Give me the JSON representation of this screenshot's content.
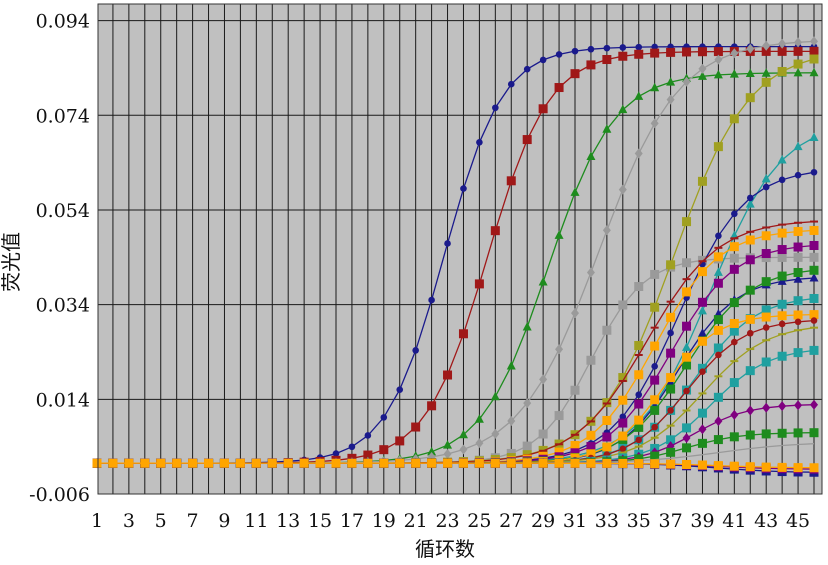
{
  "chart_data": {
    "type": "line",
    "title": "",
    "xlabel": "循环数",
    "ylabel": "荧光值",
    "xlim": [
      1,
      46
    ],
    "ylim": [
      -0.006,
      0.0975
    ],
    "x_tick_labels": [
      "1",
      "3",
      "5",
      "7",
      "9",
      "11",
      "13",
      "15",
      "17",
      "19",
      "21",
      "23",
      "25",
      "27",
      "29",
      "31",
      "33",
      "35",
      "37",
      "39",
      "41",
      "43",
      "45"
    ],
    "y_tick_labels": [
      "-0.006",
      "0.014",
      "0.034",
      "0.054",
      "0.074",
      "0.094"
    ],
    "x_ticks": [
      1,
      3,
      5,
      7,
      9,
      11,
      13,
      15,
      17,
      19,
      21,
      23,
      25,
      27,
      29,
      31,
      33,
      35,
      37,
      39,
      41,
      43,
      45
    ],
    "y_ticks": [
      -0.006,
      0.014,
      0.034,
      0.054,
      0.074,
      0.094
    ],
    "grid": true,
    "background": "#c0c0c0",
    "legend": "none",
    "series": [
      {
        "color": "#1a1a8c",
        "marker": "circle",
        "baseline": 0.0005,
        "plateau": 0.0885,
        "midpoint": 22.8,
        "slope": 0.55
      },
      {
        "color": "#a01818",
        "marker": "square",
        "baseline": 0.0005,
        "plateau": 0.0875,
        "midpoint": 25.5,
        "slope": 0.52
      },
      {
        "color": "#1e8c1e",
        "marker": "triangle",
        "baseline": 0.0005,
        "plateau": 0.083,
        "midpoint": 29.3,
        "slope": 0.48
      },
      {
        "color": "#9a9a9a",
        "marker": "diamond",
        "baseline": 0.0005,
        "plateau": 0.09,
        "midpoint": 32.5,
        "slope": 0.4
      },
      {
        "color": "#9a9a9a",
        "marker": "square",
        "baseline": 0.0005,
        "plateau": 0.044,
        "midpoint": 32.0,
        "slope": 0.6
      },
      {
        "color": "#a0a020",
        "marker": "square",
        "baseline": 0.0005,
        "plateau": 0.088,
        "midpoint": 37.2,
        "slope": 0.42
      },
      {
        "color": "#20a0a0",
        "marker": "triangle",
        "baseline": 0.0005,
        "plateau": 0.073,
        "midpoint": 39.5,
        "slope": 0.45
      },
      {
        "color": "#1a1a8c",
        "marker": "circle",
        "baseline": 0.0005,
        "plateau": 0.063,
        "midpoint": 37.5,
        "slope": 0.48
      },
      {
        "color": "#a01818",
        "marker": "dash",
        "baseline": 0.0005,
        "plateau": 0.052,
        "midpoint": 35.5,
        "slope": 0.45
      },
      {
        "color": "#ffa500",
        "marker": "square",
        "baseline": 0.0005,
        "plateau": 0.05,
        "midpoint": 36.0,
        "slope": 0.5
      },
      {
        "color": "#800080",
        "marker": "square",
        "baseline": 0.0005,
        "plateau": 0.047,
        "midpoint": 37.0,
        "slope": 0.5
      },
      {
        "color": "#1a1a8c",
        "marker": "triangle",
        "baseline": 0.0005,
        "plateau": 0.04,
        "midpoint": 37.5,
        "slope": 0.55
      },
      {
        "color": "#1e8c1e",
        "marker": "square",
        "baseline": 0.0005,
        "plateau": 0.042,
        "midpoint": 38.0,
        "slope": 0.5
      },
      {
        "color": "#20a0a0",
        "marker": "square",
        "baseline": 0.0005,
        "plateau": 0.036,
        "midpoint": 38.5,
        "slope": 0.52
      },
      {
        "color": "#ffa500",
        "marker": "square",
        "baseline": 0.0005,
        "plateau": 0.032,
        "midpoint": 36.5,
        "slope": 0.6
      },
      {
        "color": "#a01818",
        "marker": "circle",
        "baseline": 0.0005,
        "plateau": 0.031,
        "midpoint": 38.0,
        "slope": 0.55
      },
      {
        "color": "#a0a020",
        "marker": "dash",
        "baseline": 0.0005,
        "plateau": 0.03,
        "midpoint": 39.0,
        "slope": 0.5
      },
      {
        "color": "#20a0a0",
        "marker": "square",
        "baseline": 0.0005,
        "plateau": 0.025,
        "midpoint": 39.5,
        "slope": 0.55
      },
      {
        "color": "#800080",
        "marker": "diamond",
        "baseline": 0.0005,
        "plateau": 0.013,
        "midpoint": 38.5,
        "slope": 0.6
      },
      {
        "color": "#1e8c1e",
        "marker": "square",
        "baseline": 0.0005,
        "plateau": 0.007,
        "midpoint": 38.0,
        "slope": 0.6
      },
      {
        "color": "#9a9a9a",
        "marker": "none",
        "baseline": 0.0005,
        "plateau": 0.005,
        "midpoint": 40.0,
        "slope": 0.4
      },
      {
        "color": "#1a1a8c",
        "marker": "square",
        "baseline": 0.0005,
        "plateau": -0.0015,
        "midpoint": 40.0,
        "slope": 0.5
      },
      {
        "color": "#800080",
        "marker": "square",
        "baseline": 0.0005,
        "plateau": -0.0008,
        "midpoint": 40.0,
        "slope": 0.5
      },
      {
        "color": "#ffa500",
        "marker": "square",
        "baseline": 0.0005,
        "plateau": -0.0005,
        "midpoint": 40.0,
        "slope": 0.5
      }
    ]
  }
}
